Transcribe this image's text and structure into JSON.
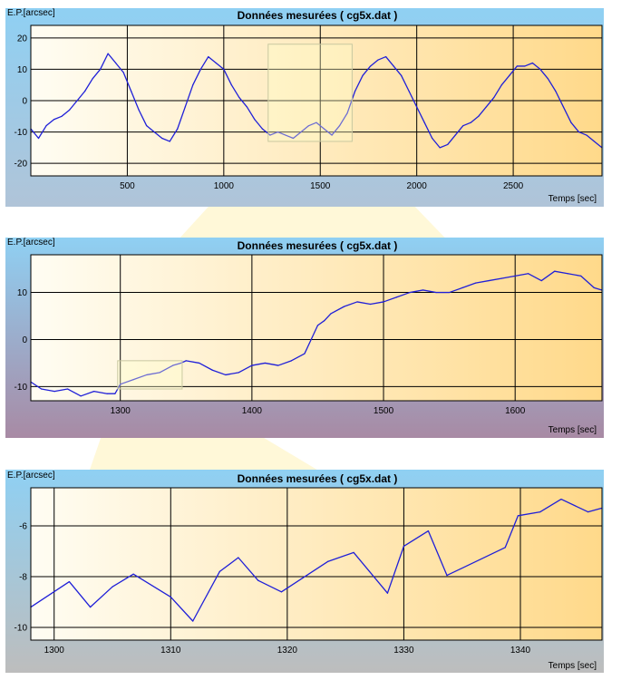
{
  "colors": {
    "series": "#1f1fd8",
    "plot_light": "#fffdf3",
    "plot_dark": "#ffd98a",
    "panel1_top": "#8fd0f3",
    "panel1_bottom": "#b0c4d8",
    "panel2_top": "#8fd0f3",
    "panel2_bottom": "#a88aa4",
    "panel3_top": "#8fd0f3",
    "panel3_bottom": "#bdbdbd",
    "grid": "#000000",
    "zoom_fan": "#fff0a8"
  },
  "chart_data": [
    {
      "type": "line",
      "title": "Données mesurées ( cg5x.dat )",
      "ylabel": "E.P.[arcsec]",
      "xlabel": "Temps [sec]",
      "xlim": [
        0,
        2960
      ],
      "ylim": [
        -24,
        24
      ],
      "x_ticks": [
        500,
        1000,
        1500,
        2000,
        2500
      ],
      "y_ticks": [
        -20,
        -10,
        0,
        10,
        20
      ],
      "zoom_box": {
        "x": [
          1230,
          1665
        ],
        "y": [
          -13,
          18
        ]
      },
      "series": [
        {
          "x": [
            0,
            40,
            80,
            120,
            160,
            200,
            240,
            280,
            320,
            360,
            400,
            440,
            480,
            520,
            560,
            600,
            640,
            680,
            720,
            760,
            800,
            840,
            880,
            920,
            960,
            1000,
            1040,
            1080,
            1120,
            1160,
            1200,
            1240,
            1280,
            1320,
            1360,
            1400,
            1440,
            1480,
            1520,
            1560,
            1600,
            1640,
            1680,
            1720,
            1760,
            1800,
            1840,
            1880,
            1920,
            1960,
            2000,
            2040,
            2080,
            2120,
            2160,
            2200,
            2240,
            2280,
            2320,
            2360,
            2400,
            2440,
            2480,
            2520,
            2560,
            2600,
            2640,
            2680,
            2720,
            2760,
            2800,
            2840,
            2880,
            2920,
            2960
          ],
          "values": [
            -9,
            -12,
            -8,
            -6,
            -5,
            -3,
            0,
            3,
            7,
            10,
            15,
            12,
            9,
            3,
            -3,
            -8,
            -10,
            -12,
            -13,
            -9,
            -2,
            5,
            10,
            14,
            12,
            10,
            5,
            1,
            -2,
            -6,
            -9,
            -11,
            -10,
            -11,
            -12,
            -10,
            -8,
            -7,
            -9,
            -11,
            -8,
            -4,
            3,
            8,
            11,
            13,
            14,
            11,
            8,
            3,
            -2,
            -7,
            -12,
            -15,
            -14,
            -11,
            -8,
            -7,
            -5,
            -2,
            1,
            5,
            8,
            11,
            11,
            12,
            10,
            7,
            3,
            -2,
            -7,
            -10,
            -11,
            -13,
            -15
          ]
        }
      ]
    },
    {
      "type": "line",
      "title": "Données mesurées ( cg5x.dat )",
      "ylabel": "E.P.[arcsec]",
      "xlabel": "Temps [sec]",
      "xlim": [
        1232,
        1666
      ],
      "ylim": [
        -13,
        18
      ],
      "x_ticks": [
        1300,
        1400,
        1500,
        1600
      ],
      "y_ticks": [
        -10,
        0,
        10
      ],
      "zoom_box": {
        "x": [
          1298,
          1347
        ],
        "y": [
          -10.5,
          -4.5
        ]
      },
      "series": [
        {
          "x": [
            1232,
            1240,
            1250,
            1260,
            1270,
            1280,
            1290,
            1296,
            1300,
            1310,
            1320,
            1330,
            1340,
            1346,
            1350,
            1360,
            1370,
            1380,
            1390,
            1400,
            1410,
            1420,
            1430,
            1440,
            1445,
            1450,
            1455,
            1460,
            1470,
            1480,
            1490,
            1500,
            1510,
            1520,
            1530,
            1540,
            1550,
            1560,
            1570,
            1580,
            1590,
            1600,
            1610,
            1620,
            1630,
            1640,
            1650,
            1660,
            1666
          ],
          "values": [
            -9,
            -10.5,
            -11,
            -10.5,
            -12,
            -11,
            -11.5,
            -11.5,
            -9.5,
            -8.5,
            -7.5,
            -7,
            -5.5,
            -5,
            -4.5,
            -5,
            -6.5,
            -7.5,
            -7,
            -5.5,
            -5,
            -5.5,
            -4.5,
            -3,
            0,
            3,
            4,
            5.5,
            7,
            8,
            7.5,
            8,
            9,
            10,
            10.5,
            10,
            10,
            11,
            12,
            12.5,
            13,
            13.5,
            14,
            12.5,
            14.5,
            14,
            13.5,
            11,
            10.5
          ]
        }
      ]
    },
    {
      "type": "line",
      "title": "Données mesurées ( cg5x.dat )",
      "ylabel": "E.P.[arcsec]",
      "xlabel": "Temps [sec]",
      "xlim": [
        1298,
        1347
      ],
      "ylim": [
        -10.5,
        -4.5
      ],
      "x_ticks": [
        1300,
        1310,
        1320,
        1330,
        1340
      ],
      "y_ticks": [
        -10,
        -8,
        -6
      ],
      "series": [
        {
          "x": [
            1298,
            1301.3,
            1303.1,
            1305,
            1306.8,
            1310,
            1311.9,
            1314.2,
            1315.8,
            1317.5,
            1319.5,
            1323.5,
            1325.7,
            1328.6,
            1330,
            1332.1,
            1333.7,
            1338.7,
            1339.8,
            1341.7,
            1343.5,
            1345.8,
            1347
          ],
          "values": [
            -9.2,
            -8.2,
            -9.2,
            -8.4,
            -7.9,
            -8.8,
            -9.75,
            -7.8,
            -7.25,
            -8.15,
            -8.6,
            -7.4,
            -7.05,
            -8.65,
            -6.8,
            -6.2,
            -7.95,
            -6.85,
            -5.6,
            -5.45,
            -4.95,
            -5.45,
            -5.3
          ]
        }
      ]
    }
  ]
}
